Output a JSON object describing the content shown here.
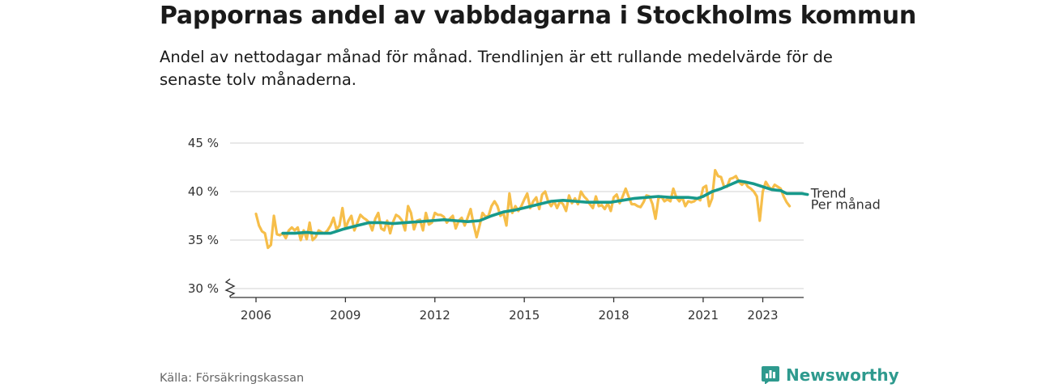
{
  "title": "Pappornas andel av vabbdagarna i Stockholms kommun",
  "subtitle": "Andel av nettodagar månad för månad. Trendlinjen är ett rullande medelvärde för de senaste tolv månaderna.",
  "source": "Källa: Försäkringskassan",
  "brand": {
    "name": "Newsworthy",
    "icon": "newsworthy-logo-icon",
    "color": "#2e9a8e"
  },
  "chart_data": {
    "type": "line",
    "title": "Pappornas andel av vabbdagarna i Stockholms kommun",
    "xlabel": "",
    "ylabel": "",
    "ylim": [
      30,
      45
    ],
    "y_ticks": [
      30,
      35,
      40,
      45
    ],
    "y_tick_labels": [
      "30 %",
      "35 %",
      "40 %",
      "45 %"
    ],
    "xlim": [
      2006,
      2024.2
    ],
    "x_ticks": [
      2006,
      2009,
      2012,
      2015,
      2018,
      2021,
      2023
    ],
    "x_tick_labels": [
      "2006",
      "2009",
      "2012",
      "2015",
      "2018",
      "2021",
      "2023"
    ],
    "grid": true,
    "axis_break": true,
    "legend": "inline-end-labels",
    "series": [
      {
        "name": "Per månad",
        "color": "#f6be4a",
        "points": [
          [
            2006.0,
            37.7
          ],
          [
            2006.1,
            36.5
          ],
          [
            2006.2,
            35.9
          ],
          [
            2006.3,
            35.7
          ],
          [
            2006.4,
            34.2
          ],
          [
            2006.5,
            34.5
          ],
          [
            2006.6,
            37.5
          ],
          [
            2006.7,
            35.6
          ],
          [
            2006.8,
            35.5
          ],
          [
            2006.9,
            35.7
          ],
          [
            2007.0,
            35.2
          ],
          [
            2007.1,
            36.0
          ],
          [
            2007.2,
            36.3
          ],
          [
            2007.3,
            36.0
          ],
          [
            2007.4,
            36.3
          ],
          [
            2007.5,
            35.0
          ],
          [
            2007.6,
            36.0
          ],
          [
            2007.7,
            35.1
          ],
          [
            2007.8,
            36.8
          ],
          [
            2007.9,
            35.0
          ],
          [
            2008.0,
            35.3
          ],
          [
            2008.1,
            36.0
          ],
          [
            2008.2,
            35.8
          ],
          [
            2008.3,
            35.7
          ],
          [
            2008.4,
            36.0
          ],
          [
            2008.5,
            36.5
          ],
          [
            2008.6,
            37.3
          ],
          [
            2008.7,
            36.1
          ],
          [
            2008.8,
            36.5
          ],
          [
            2008.9,
            38.3
          ],
          [
            2009.0,
            36.2
          ],
          [
            2009.1,
            37.0
          ],
          [
            2009.2,
            37.5
          ],
          [
            2009.3,
            36.0
          ],
          [
            2009.4,
            36.8
          ],
          [
            2009.5,
            37.6
          ],
          [
            2009.6,
            37.3
          ],
          [
            2009.7,
            37.1
          ],
          [
            2009.8,
            36.8
          ],
          [
            2009.9,
            36.0
          ],
          [
            2010.0,
            37.2
          ],
          [
            2010.1,
            37.8
          ],
          [
            2010.2,
            36.2
          ],
          [
            2010.3,
            36.0
          ],
          [
            2010.4,
            37.0
          ],
          [
            2010.5,
            35.7
          ],
          [
            2010.6,
            36.9
          ],
          [
            2010.7,
            37.6
          ],
          [
            2010.8,
            37.4
          ],
          [
            2010.9,
            37.0
          ],
          [
            2011.0,
            36.0
          ],
          [
            2011.1,
            38.5
          ],
          [
            2011.2,
            37.8
          ],
          [
            2011.3,
            36.1
          ],
          [
            2011.4,
            37.0
          ],
          [
            2011.5,
            37.1
          ],
          [
            2011.6,
            36.0
          ],
          [
            2011.7,
            37.8
          ],
          [
            2011.8,
            36.6
          ],
          [
            2011.9,
            36.8
          ],
          [
            2012.0,
            37.8
          ],
          [
            2012.1,
            37.6
          ],
          [
            2012.2,
            37.6
          ],
          [
            2012.3,
            37.4
          ],
          [
            2012.4,
            36.8
          ],
          [
            2012.5,
            37.2
          ],
          [
            2012.6,
            37.5
          ],
          [
            2012.7,
            36.2
          ],
          [
            2012.8,
            37.0
          ],
          [
            2012.9,
            37.3
          ],
          [
            2013.0,
            36.5
          ],
          [
            2013.1,
            37.3
          ],
          [
            2013.2,
            38.2
          ],
          [
            2013.3,
            36.6
          ],
          [
            2013.4,
            35.3
          ],
          [
            2013.5,
            36.5
          ],
          [
            2013.6,
            37.8
          ],
          [
            2013.7,
            37.4
          ],
          [
            2013.8,
            37.5
          ],
          [
            2013.9,
            38.5
          ],
          [
            2014.0,
            39.0
          ],
          [
            2014.1,
            38.5
          ],
          [
            2014.2,
            37.5
          ],
          [
            2014.3,
            37.8
          ],
          [
            2014.4,
            36.5
          ],
          [
            2014.5,
            39.8
          ],
          [
            2014.6,
            37.8
          ],
          [
            2014.7,
            38.5
          ],
          [
            2014.8,
            38.0
          ],
          [
            2014.9,
            38.5
          ],
          [
            2015.0,
            39.2
          ],
          [
            2015.1,
            39.8
          ],
          [
            2015.2,
            38.3
          ],
          [
            2015.3,
            39.0
          ],
          [
            2015.4,
            39.4
          ],
          [
            2015.5,
            38.2
          ],
          [
            2015.6,
            39.7
          ],
          [
            2015.7,
            40.0
          ],
          [
            2015.8,
            39.0
          ],
          [
            2015.9,
            38.5
          ],
          [
            2016.0,
            39.0
          ],
          [
            2016.1,
            38.3
          ],
          [
            2016.2,
            39.0
          ],
          [
            2016.3,
            38.7
          ],
          [
            2016.4,
            38.0
          ],
          [
            2016.5,
            39.6
          ],
          [
            2016.6,
            38.8
          ],
          [
            2016.7,
            39.3
          ],
          [
            2016.8,
            38.7
          ],
          [
            2016.9,
            40.0
          ],
          [
            2017.0,
            39.5
          ],
          [
            2017.1,
            39.2
          ],
          [
            2017.2,
            38.7
          ],
          [
            2017.3,
            38.3
          ],
          [
            2017.4,
            39.5
          ],
          [
            2017.5,
            38.5
          ],
          [
            2017.6,
            38.6
          ],
          [
            2017.7,
            38.2
          ],
          [
            2017.8,
            38.8
          ],
          [
            2017.9,
            38.0
          ],
          [
            2018.0,
            39.4
          ],
          [
            2018.1,
            39.7
          ],
          [
            2018.2,
            38.8
          ],
          [
            2018.3,
            39.5
          ],
          [
            2018.4,
            40.3
          ],
          [
            2018.5,
            39.5
          ],
          [
            2018.6,
            38.7
          ],
          [
            2018.7,
            38.7
          ],
          [
            2018.8,
            38.5
          ],
          [
            2018.9,
            38.4
          ],
          [
            2019.0,
            38.9
          ],
          [
            2019.1,
            39.6
          ],
          [
            2019.2,
            39.5
          ],
          [
            2019.3,
            38.7
          ],
          [
            2019.4,
            37.2
          ],
          [
            2019.5,
            39.3
          ],
          [
            2019.6,
            39.5
          ],
          [
            2019.7,
            39.0
          ],
          [
            2019.8,
            39.2
          ],
          [
            2019.9,
            39.0
          ],
          [
            2020.0,
            40.3
          ],
          [
            2020.1,
            39.4
          ],
          [
            2020.2,
            39.0
          ],
          [
            2020.3,
            39.4
          ],
          [
            2020.4,
            38.5
          ],
          [
            2020.5,
            39.0
          ],
          [
            2020.6,
            38.9
          ],
          [
            2020.7,
            39.0
          ],
          [
            2020.8,
            39.3
          ],
          [
            2020.9,
            39.1
          ],
          [
            2021.0,
            40.4
          ],
          [
            2021.1,
            40.6
          ],
          [
            2021.2,
            38.5
          ],
          [
            2021.3,
            39.3
          ],
          [
            2021.4,
            42.2
          ],
          [
            2021.5,
            41.6
          ],
          [
            2021.6,
            41.5
          ],
          [
            2021.7,
            40.5
          ],
          [
            2021.8,
            40.5
          ],
          [
            2021.9,
            41.3
          ],
          [
            2022.0,
            41.4
          ],
          [
            2022.1,
            41.6
          ],
          [
            2022.2,
            41.0
          ],
          [
            2022.3,
            40.7
          ],
          [
            2022.4,
            41.0
          ],
          [
            2022.5,
            40.5
          ],
          [
            2022.6,
            40.3
          ],
          [
            2022.7,
            40.0
          ],
          [
            2022.8,
            39.5
          ],
          [
            2022.9,
            37.0
          ],
          [
            2023.0,
            40.0
          ],
          [
            2023.1,
            41.0
          ],
          [
            2023.2,
            40.5
          ],
          [
            2023.3,
            40.2
          ],
          [
            2023.4,
            40.7
          ],
          [
            2023.5,
            40.5
          ],
          [
            2023.6,
            40.3
          ],
          [
            2023.7,
            39.5
          ],
          [
            2023.8,
            38.9
          ],
          [
            2023.9,
            38.5
          ]
        ]
      },
      {
        "name": "Trend",
        "color": "#17998b",
        "points": [
          [
            2006.9,
            35.7
          ],
          [
            2007.3,
            35.7
          ],
          [
            2007.7,
            35.8
          ],
          [
            2008.0,
            35.7
          ],
          [
            2008.5,
            35.7
          ],
          [
            2008.9,
            36.1
          ],
          [
            2009.4,
            36.5
          ],
          [
            2009.8,
            36.8
          ],
          [
            2010.2,
            36.8
          ],
          [
            2010.6,
            36.7
          ],
          [
            2011.0,
            36.8
          ],
          [
            2011.5,
            36.9
          ],
          [
            2011.9,
            37.0
          ],
          [
            2012.3,
            37.1
          ],
          [
            2012.7,
            37.0
          ],
          [
            2013.1,
            36.9
          ],
          [
            2013.5,
            37.0
          ],
          [
            2013.9,
            37.5
          ],
          [
            2014.3,
            37.9
          ],
          [
            2014.7,
            38.1
          ],
          [
            2015.1,
            38.4
          ],
          [
            2015.5,
            38.7
          ],
          [
            2015.9,
            39.0
          ],
          [
            2016.3,
            39.1
          ],
          [
            2016.7,
            39.0
          ],
          [
            2017.1,
            38.9
          ],
          [
            2017.5,
            38.9
          ],
          [
            2017.9,
            38.9
          ],
          [
            2018.3,
            39.1
          ],
          [
            2018.7,
            39.3
          ],
          [
            2019.1,
            39.4
          ],
          [
            2019.5,
            39.5
          ],
          [
            2019.9,
            39.4
          ],
          [
            2020.2,
            39.4
          ],
          [
            2020.5,
            39.4
          ],
          [
            2020.8,
            39.3
          ],
          [
            2021.0,
            39.5
          ],
          [
            2021.3,
            40.0
          ],
          [
            2021.6,
            40.3
          ],
          [
            2021.9,
            40.7
          ],
          [
            2022.2,
            41.1
          ],
          [
            2022.4,
            41.0
          ],
          [
            2022.7,
            40.8
          ],
          [
            2023.0,
            40.5
          ],
          [
            2023.3,
            40.2
          ],
          [
            2023.6,
            40.1
          ],
          [
            2023.8,
            39.8
          ],
          [
            2024.0,
            39.8
          ],
          [
            2024.3,
            39.8
          ],
          [
            2024.5,
            39.7
          ]
        ]
      }
    ]
  }
}
